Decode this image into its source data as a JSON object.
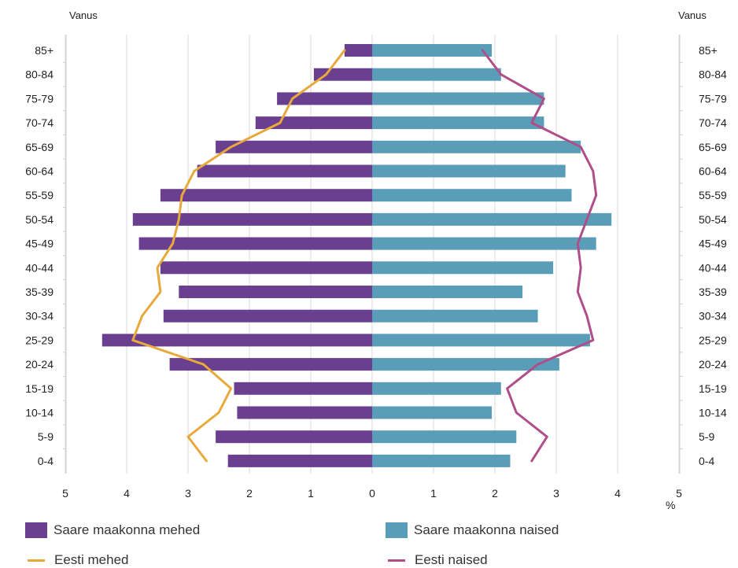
{
  "chart_data": {
    "type": "bar",
    "orientation": "horizontal-population-pyramid",
    "y_axis_label_left": "Vanus",
    "y_axis_label_right": "Vanus",
    "x_unit": "%",
    "xlim": [
      -5,
      5
    ],
    "x_ticks": [
      -5,
      -4,
      -3,
      -2,
      -1,
      0,
      1,
      2,
      3,
      4,
      5
    ],
    "x_tick_labels": [
      "5",
      "4",
      "3",
      "2",
      "1",
      "0",
      "1",
      "2",
      "3",
      "4",
      "5"
    ],
    "categories": [
      "85+",
      "80-84",
      "75-79",
      "70-74",
      "65-69",
      "60-64",
      "55-59",
      "50-54",
      "45-49",
      "40-44",
      "35-39",
      "30-34",
      "25-29",
      "20-24",
      "15-19",
      "10-14",
      "5-9",
      "0-4"
    ],
    "series": [
      {
        "name": "Saare maakonna mehed",
        "kind": "bar",
        "side": "left",
        "color": "#6b3f8f",
        "values": [
          0.45,
          0.95,
          1.55,
          1.9,
          2.55,
          2.85,
          3.45,
          3.9,
          3.8,
          3.45,
          3.15,
          3.4,
          4.4,
          3.3,
          2.25,
          2.2,
          2.55,
          2.35
        ]
      },
      {
        "name": "Saare maakonna naised",
        "kind": "bar",
        "side": "right",
        "color": "#5a9db8",
        "values": [
          1.95,
          2.1,
          2.8,
          2.8,
          3.4,
          3.15,
          3.25,
          3.9,
          3.65,
          2.95,
          2.45,
          2.7,
          3.55,
          3.05,
          2.1,
          1.95,
          2.35,
          2.25
        ]
      },
      {
        "name": "Eesti mehed",
        "kind": "line",
        "side": "left",
        "color": "#e8a93c",
        "values": [
          0.45,
          0.75,
          1.3,
          1.5,
          2.3,
          2.9,
          3.1,
          3.15,
          3.25,
          3.5,
          3.45,
          3.75,
          3.9,
          2.75,
          2.3,
          2.5,
          3.0,
          2.7
        ]
      },
      {
        "name": "Eesti naised",
        "kind": "line",
        "side": "right",
        "color": "#b04e8a",
        "values": [
          1.8,
          2.1,
          2.8,
          2.6,
          3.4,
          3.6,
          3.65,
          3.5,
          3.35,
          3.4,
          3.35,
          3.5,
          3.6,
          2.7,
          2.2,
          2.35,
          2.85,
          2.6
        ]
      }
    ],
    "grid": true,
    "legend_position": "bottom"
  }
}
